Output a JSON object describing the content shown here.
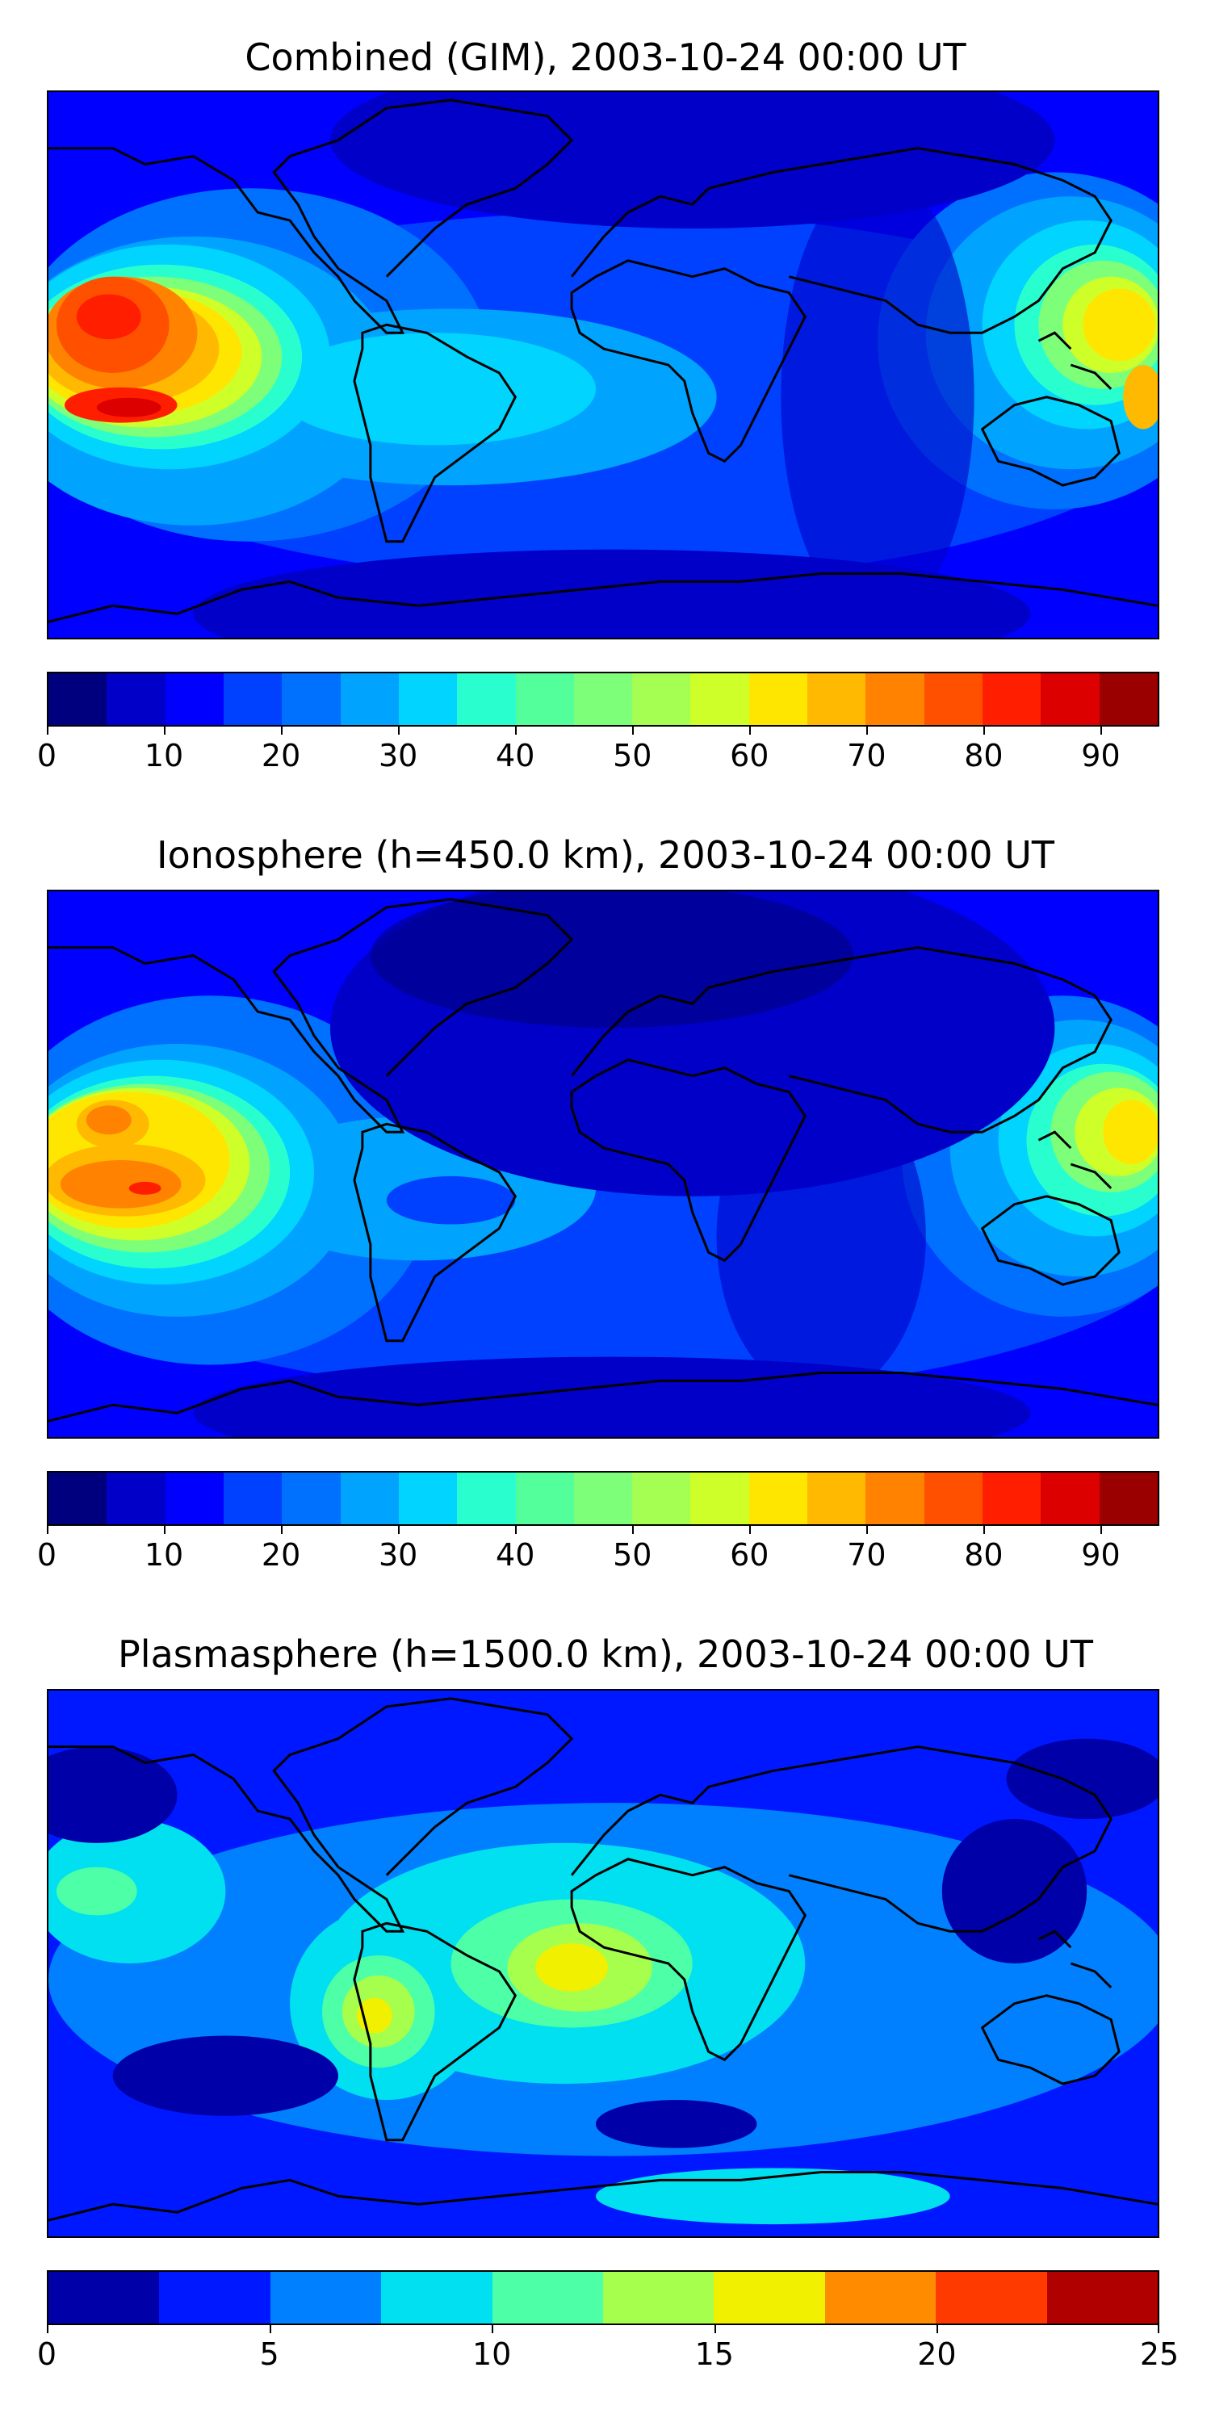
{
  "panels": [
    {
      "title": "Combined (GIM), 2003-10-24 00:00 UT",
      "colorbar": {
        "min": 0,
        "max": 95,
        "step": 5,
        "ticks": [
          "0",
          "10",
          "20",
          "30",
          "40",
          "50",
          "60",
          "70",
          "80",
          "90"
        ],
        "tick_values": [
          0,
          10,
          20,
          30,
          40,
          50,
          60,
          70,
          80,
          90
        ],
        "colors": [
          "#00007f",
          "#0000c8",
          "#0000ff",
          "#0040ff",
          "#0070ff",
          "#00a4ff",
          "#00d4ff",
          "#29ffce",
          "#52ff9a",
          "#7dff7a",
          "#a4ff52",
          "#ceff29",
          "#ffe600",
          "#ffb900",
          "#ff8200",
          "#ff5000",
          "#ff1e00",
          "#dc0000",
          "#9a0000"
        ]
      }
    },
    {
      "title": "Ionosphere  (h=450.0 km), 2003-10-24 00:00 UT",
      "colorbar": {
        "min": 0,
        "max": 95,
        "step": 5,
        "ticks": [
          "0",
          "10",
          "20",
          "30",
          "40",
          "50",
          "60",
          "70",
          "80",
          "90"
        ],
        "tick_values": [
          0,
          10,
          20,
          30,
          40,
          50,
          60,
          70,
          80,
          90
        ],
        "colors": [
          "#00007f",
          "#0000c8",
          "#0000ff",
          "#0040ff",
          "#0070ff",
          "#00a4ff",
          "#00d4ff",
          "#29ffce",
          "#52ff9a",
          "#7dff7a",
          "#a4ff52",
          "#ceff29",
          "#ffe600",
          "#ffb900",
          "#ff8200",
          "#ff5000",
          "#ff1e00",
          "#dc0000",
          "#9a0000"
        ]
      }
    },
    {
      "title": "Plasmasphere (h=1500.0 km), 2003-10-24 00:00 UT",
      "colorbar": {
        "min": 0,
        "max": 25,
        "step": 2.5,
        "ticks": [
          "0",
          "5",
          "10",
          "15",
          "20",
          "25"
        ],
        "tick_values": [
          0,
          5,
          10,
          15,
          20,
          25
        ],
        "colors": [
          "#0000a8",
          "#0018ff",
          "#0080ff",
          "#00e0f0",
          "#4dffa6",
          "#a6ff4d",
          "#f0f000",
          "#ff8c00",
          "#ff3a00",
          "#b00000"
        ]
      }
    }
  ],
  "colors": {
    "background": "#ffffff",
    "coastline": "#000000"
  }
}
